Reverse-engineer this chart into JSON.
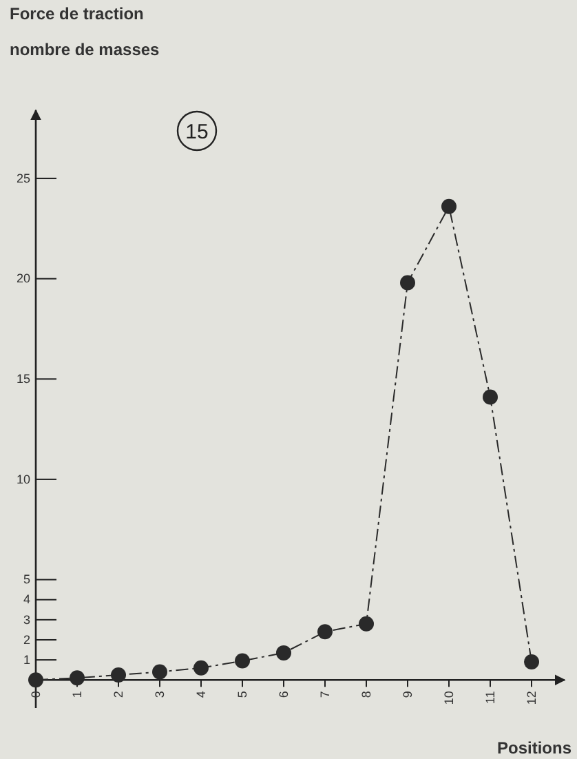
{
  "chart_data": {
    "type": "line",
    "ylabel": "Force de traction\nnombre de masses",
    "xlabel": "Positions",
    "annotations": [
      "15"
    ],
    "x": [
      0,
      1,
      2,
      3,
      4,
      5,
      6,
      7,
      8,
      9,
      10,
      11,
      12
    ],
    "series": [
      {
        "color": "#2a2a2a",
        "values": [
          0,
          0.1,
          0.25,
          0.4,
          0.6,
          0.95,
          1.35,
          2.4,
          2.8,
          19.8,
          23.6,
          14.1,
          0.9
        ]
      }
    ],
    "xlim": [
      0,
      12.8
    ],
    "ylim": [
      -1.4,
      28.4
    ],
    "xticks": [
      0,
      1,
      2,
      3,
      4,
      5,
      6,
      7,
      8,
      9,
      10,
      11,
      12
    ],
    "yticks": [
      1,
      2,
      3,
      4,
      5,
      10,
      15,
      20,
      25
    ],
    "marker": "circle",
    "line_style": "dashed"
  }
}
